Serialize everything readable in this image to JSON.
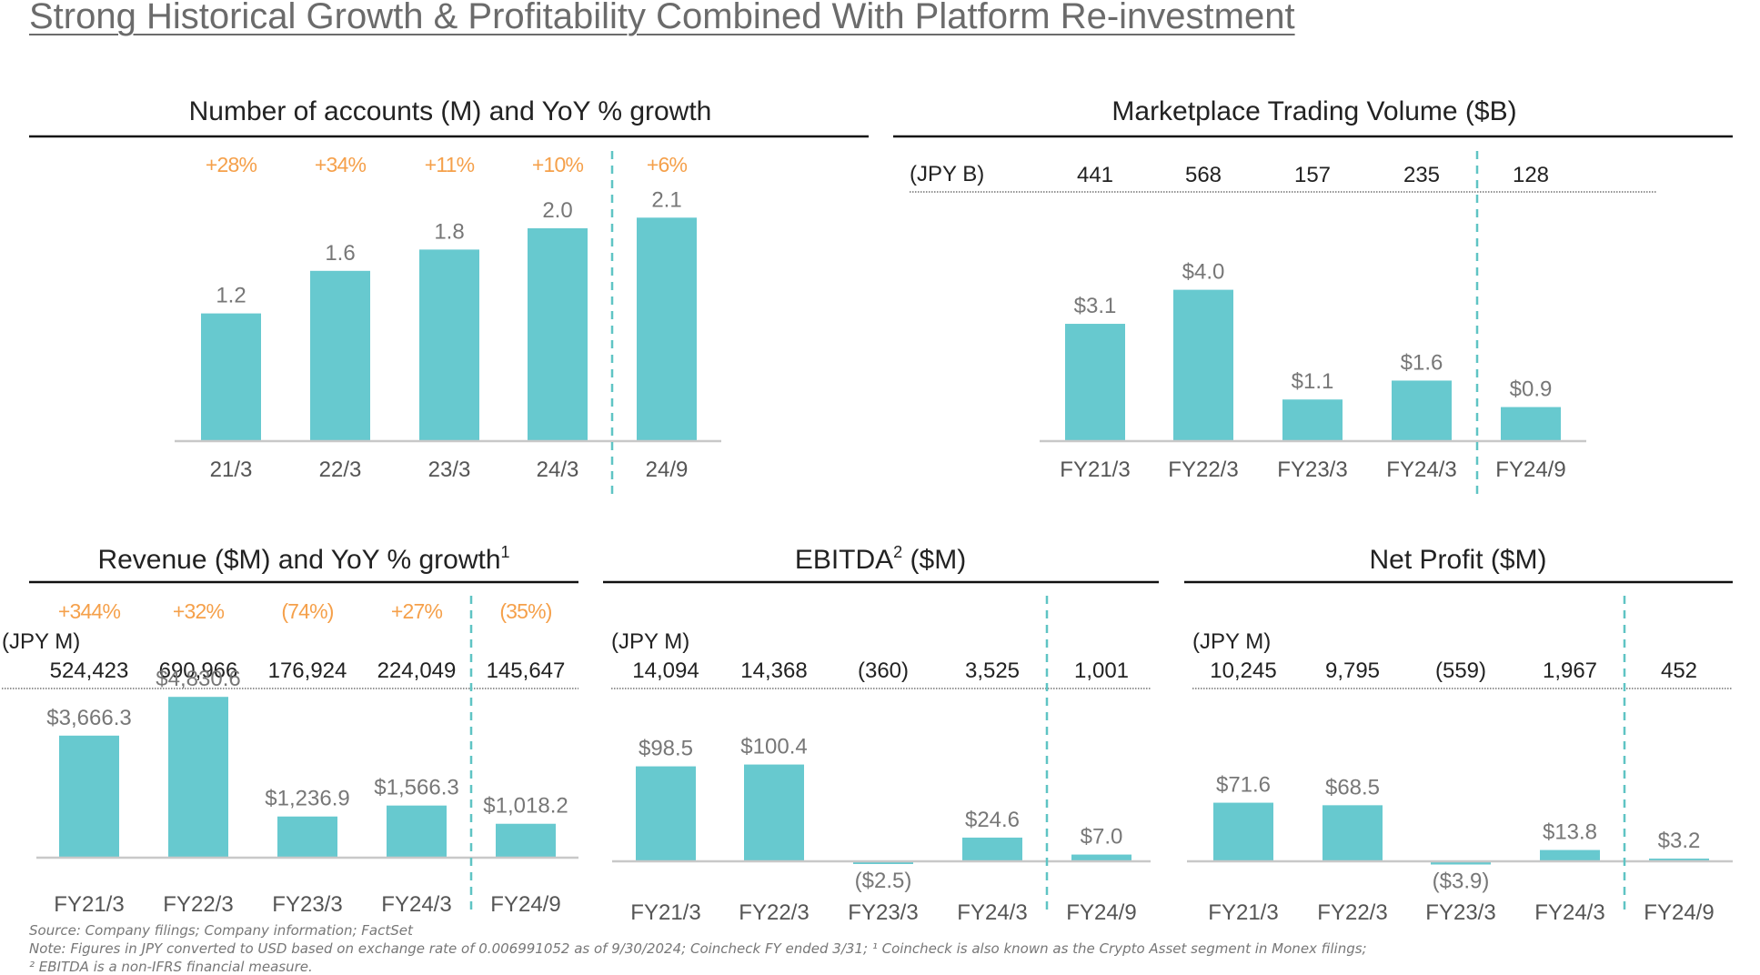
{
  "page": {
    "title": "Strong Historical Growth & Profitability Combined With Platform Re-investment"
  },
  "colors": {
    "bar": "#67C9CF",
    "growth": "#F5A04A",
    "label": "#777777",
    "text": "#222222",
    "divider": "#5FC4C4"
  },
  "chart_data": [
    {
      "id": "accounts",
      "type": "bar",
      "title": "Number of accounts (M) and YoY % growth",
      "categories": [
        "21/3",
        "22/3",
        "23/3",
        "24/3",
        "24/9"
      ],
      "values": [
        1.2,
        1.6,
        1.8,
        2.0,
        2.1
      ],
      "value_labels": [
        "1.2",
        "1.6",
        "1.8",
        "2.0",
        "2.1"
      ],
      "growth": [
        "+28%",
        "+34%",
        "+11%",
        "+10%",
        "+6%"
      ],
      "ylim": [
        0,
        2.5
      ],
      "divider_after_index": 3
    },
    {
      "id": "trading-volume",
      "type": "bar",
      "title": "Marketplace Trading Volume ($B)",
      "currency_label": "(JPY B)",
      "jpy_values": [
        "441",
        "568",
        "157",
        "235",
        "128"
      ],
      "categories": [
        "FY21/3",
        "FY22/3",
        "FY23/3",
        "FY24/3",
        "FY24/9"
      ],
      "values": [
        3.1,
        4.0,
        1.1,
        1.6,
        0.9
      ],
      "value_labels": [
        "$3.1",
        "$4.0",
        "$1.1",
        "$1.6",
        "$0.9"
      ],
      "ylim": [
        0,
        5.0
      ],
      "divider_after_index": 3
    },
    {
      "id": "revenue",
      "type": "bar",
      "title": "Revenue ($M) and YoY % growth",
      "title_sup": "1",
      "currency_label": "(JPY M)",
      "jpy_values": [
        "524,423",
        "690,966",
        "176,924",
        "224,049",
        "145,647"
      ],
      "growth": [
        "+344%",
        "+32%",
        "(74%)",
        "+27%",
        "(35%)"
      ],
      "categories": [
        "FY21/3",
        "FY22/3",
        "FY23/3",
        "FY24/3",
        "FY24/9"
      ],
      "values": [
        3666.3,
        4830.6,
        1236.9,
        1566.3,
        1018.2
      ],
      "value_labels": [
        "$3,666.3",
        "$4,830.6",
        "$1,236.9",
        "$1,566.3",
        "$1,018.2"
      ],
      "ylim": [
        0,
        5000
      ],
      "divider_after_index": 3
    },
    {
      "id": "ebitda",
      "type": "bar",
      "title": "EBITDA",
      "title_sup": "2",
      "title_suffix": " ($M)",
      "currency_label": "(JPY M)",
      "jpy_values": [
        "14,094",
        "14,368",
        "(360)",
        "3,525",
        "1,001"
      ],
      "categories": [
        "FY21/3",
        "FY22/3",
        "FY23/3",
        "FY24/3",
        "FY24/9"
      ],
      "values": [
        98.5,
        100.4,
        -2.5,
        24.6,
        7.0
      ],
      "value_labels": [
        "$98.5",
        "$100.4",
        "($2.5)",
        "$24.6",
        "$7.0"
      ],
      "ylim": [
        -5,
        110
      ],
      "divider_after_index": 3
    },
    {
      "id": "net-profit",
      "type": "bar",
      "title": "Net Profit ($M)",
      "currency_label": "(JPY M)",
      "jpy_values": [
        "10,245",
        "9,795",
        "(559)",
        "1,967",
        "452"
      ],
      "categories": [
        "FY21/3",
        "FY22/3",
        "FY23/3",
        "FY24/3",
        "FY24/9"
      ],
      "values": [
        71.6,
        68.5,
        -3.9,
        13.8,
        3.2
      ],
      "value_labels": [
        "$71.6",
        "$68.5",
        "($3.9)",
        "$13.8",
        "$3.2"
      ],
      "ylim": [
        -5,
        110
      ],
      "divider_after_index": 3
    }
  ],
  "footnotes": [
    "Source: Company filings; Company information; FactSet",
    "Note: Figures in JPY converted to USD based on exchange rate of 0.006991052 as of 9/30/2024; Coincheck FY ended 3/31; ¹ Coincheck is also known as the Crypto Asset segment in Monex filings;",
    "² EBITDA is a non-IFRS financial measure."
  ]
}
